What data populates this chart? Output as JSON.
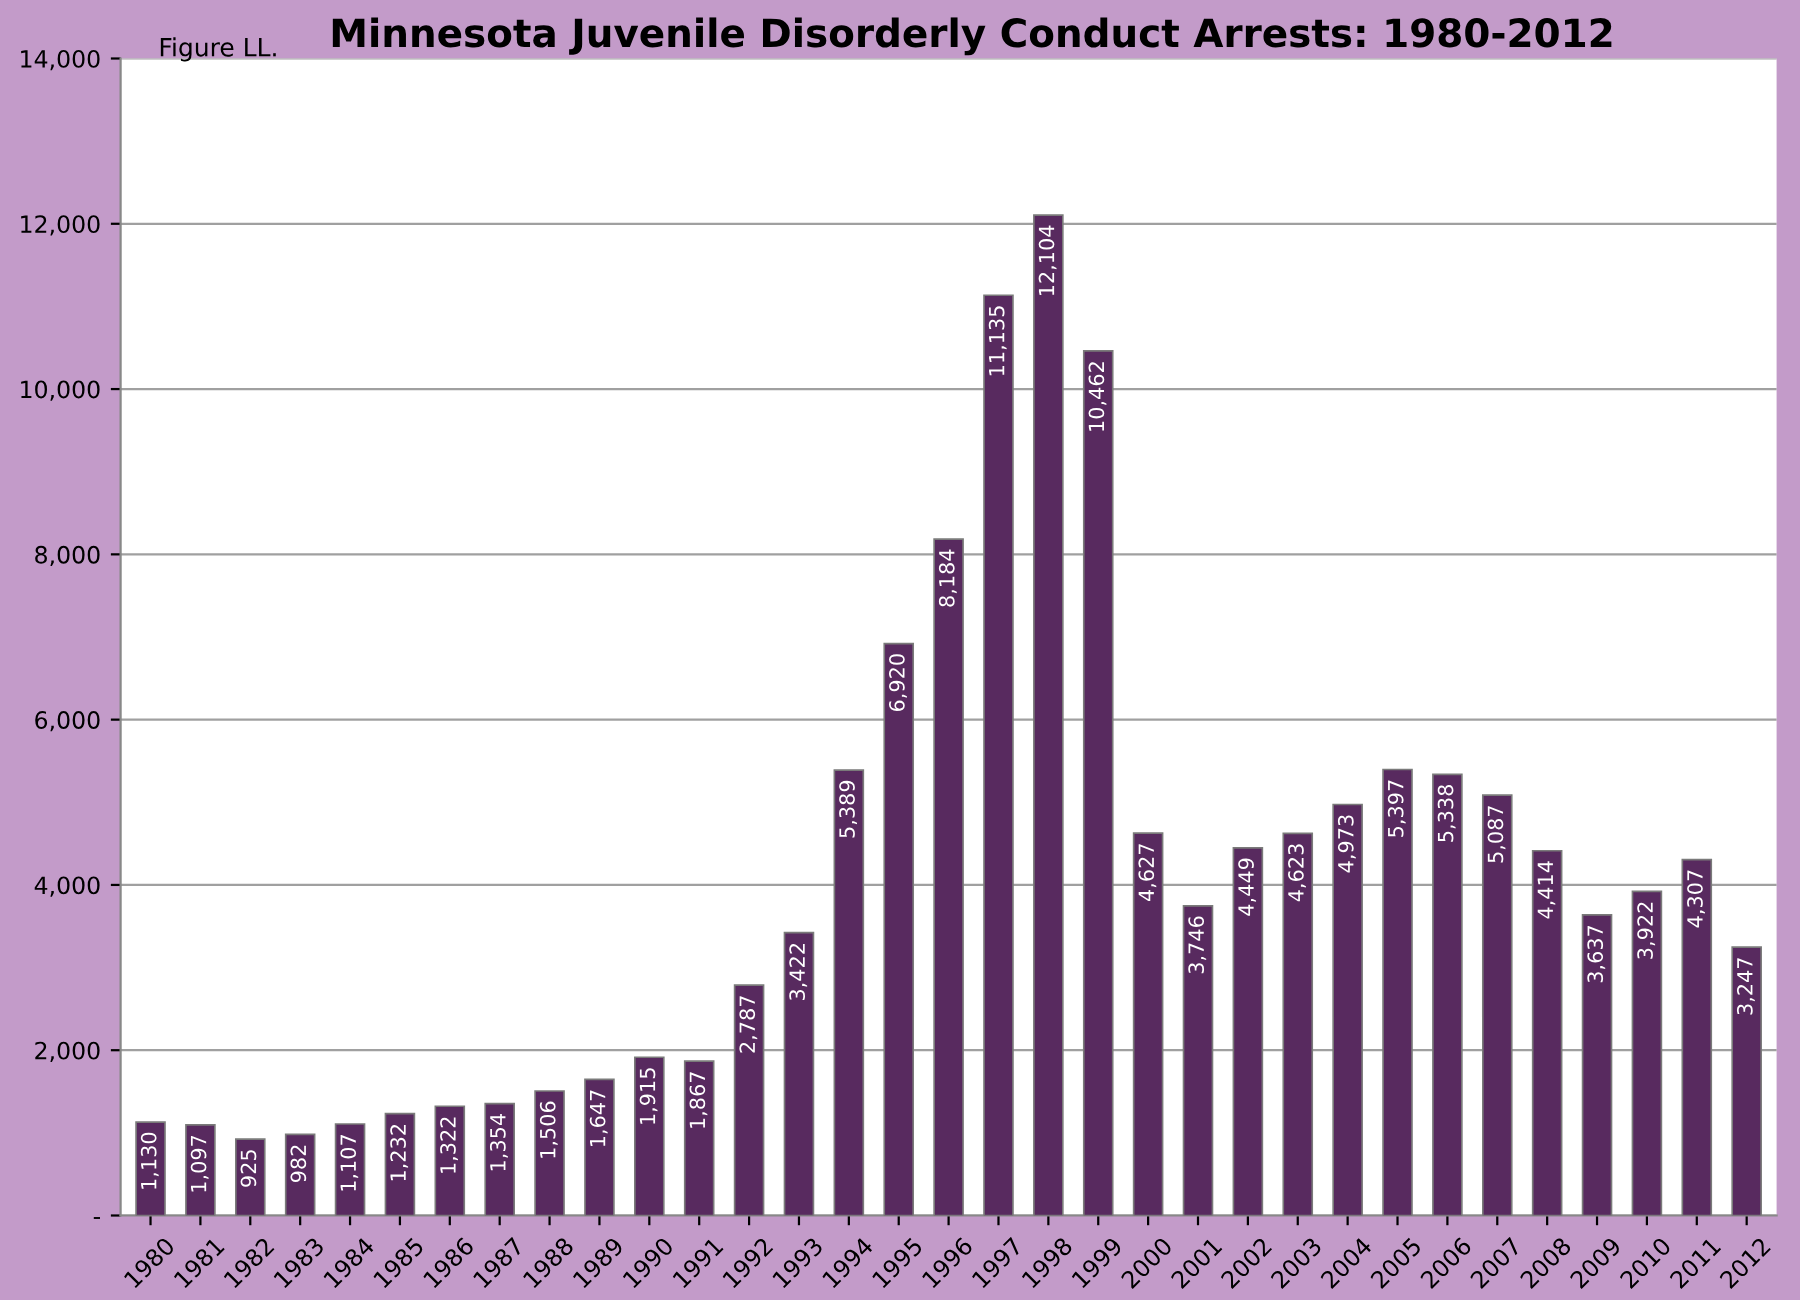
{
  "chart_data": {
    "type": "bar",
    "title": "Minnesota Juvenile Disorderly Conduct Arrests: 1980-2012",
    "annotations": [
      "Figure LL."
    ],
    "categories": [
      "1980",
      "1981",
      "1982",
      "1983",
      "1984",
      "1985",
      "1986",
      "1987",
      "1988",
      "1989",
      "1990",
      "1991",
      "1992",
      "1993",
      "1994",
      "1995",
      "1996",
      "1997",
      "1998",
      "1999",
      "2000",
      "2001",
      "2002",
      "2003",
      "2004",
      "2005",
      "2006",
      "2007",
      "2008",
      "2009",
      "2010",
      "2011",
      "2012"
    ],
    "values": [
      1130,
      1097,
      925,
      982,
      1107,
      1232,
      1322,
      1354,
      1506,
      1647,
      1915,
      1867,
      2787,
      3422,
      5389,
      6920,
      8184,
      11135,
      12104,
      10462,
      4627,
      3746,
      4449,
      4623,
      4973,
      5397,
      5338,
      5087,
      4414,
      3637,
      3922,
      4307,
      3247
    ],
    "value_labels": [
      "1,130",
      "1,097",
      "925",
      "982",
      "1,107",
      "1,232",
      "1,322",
      "1,354",
      "1,506",
      "1,647",
      "1,915",
      "1,867",
      "2,787",
      "3,422",
      "5,389",
      "6,920",
      "8,184",
      "11,135",
      "12,104",
      "10,462",
      "4,627",
      "3,746",
      "4,449",
      "4,623",
      "4,973",
      "5,397",
      "5,338",
      "5,087",
      "4,414",
      "3,637",
      "3,922",
      "4,307",
      "3,247"
    ],
    "color": "#582a5f",
    "ylim": [
      0,
      14000
    ],
    "yticks": [
      {
        "value": 0,
        "label": "-"
      },
      {
        "value": 2000,
        "label": "2,000"
      },
      {
        "value": 4000,
        "label": "4,000"
      },
      {
        "value": 6000,
        "label": "6,000"
      },
      {
        "value": 8000,
        "label": "8,000"
      },
      {
        "value": 10000,
        "label": "10,000"
      },
      {
        "value": 12000,
        "label": "12,000"
      },
      {
        "value": 14000,
        "label": "14,000"
      }
    ],
    "grid": "y"
  }
}
